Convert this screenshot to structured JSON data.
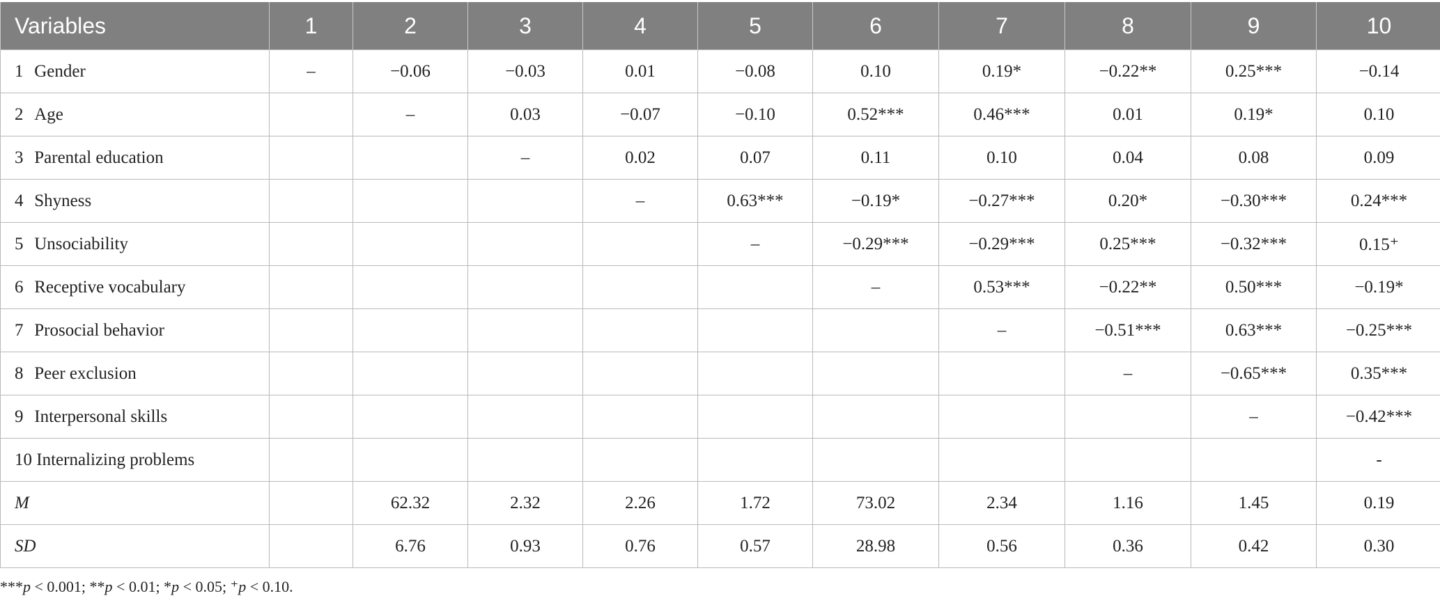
{
  "table": {
    "headers": [
      "Variables",
      "1",
      "2",
      "3",
      "4",
      "5",
      "6",
      "7",
      "8",
      "9",
      "10"
    ],
    "rows": [
      {
        "num": "1",
        "label": "Gender",
        "italic": false,
        "cells": [
          "–",
          "−0.06",
          "−0.03",
          "0.01",
          "−0.08",
          "0.10",
          "0.19*",
          "−0.22**",
          "0.25***",
          "−0.14"
        ]
      },
      {
        "num": "2",
        "label": "Age",
        "italic": false,
        "cells": [
          "",
          "–",
          "0.03",
          "−0.07",
          "−0.10",
          "0.52***",
          "0.46***",
          "0.01",
          "0.19*",
          "0.10"
        ]
      },
      {
        "num": "3",
        "label": "Parental education",
        "italic": false,
        "cells": [
          "",
          "",
          "–",
          "0.02",
          "0.07",
          "0.11",
          "0.10",
          "0.04",
          "0.08",
          "0.09"
        ]
      },
      {
        "num": "4",
        "label": "Shyness",
        "italic": false,
        "cells": [
          "",
          "",
          "",
          "–",
          "0.63***",
          "−0.19*",
          "−0.27***",
          "0.20*",
          "−0.30***",
          "0.24***"
        ]
      },
      {
        "num": "5",
        "label": "Unsociability",
        "italic": false,
        "cells": [
          "",
          "",
          "",
          "",
          "–",
          "−0.29***",
          "−0.29***",
          "0.25***",
          "−0.32***",
          "0.15⁺"
        ]
      },
      {
        "num": "6",
        "label": "Receptive vocabulary",
        "italic": false,
        "cells": [
          "",
          "",
          "",
          "",
          "",
          "–",
          "0.53***",
          "−0.22**",
          "0.50***",
          "−0.19*"
        ]
      },
      {
        "num": "7",
        "label": "Prosocial behavior",
        "italic": false,
        "cells": [
          "",
          "",
          "",
          "",
          "",
          "",
          "–",
          "−0.51***",
          "0.63***",
          "−0.25***"
        ]
      },
      {
        "num": "8",
        "label": "Peer exclusion",
        "italic": false,
        "cells": [
          "",
          "",
          "",
          "",
          "",
          "",
          "",
          "–",
          "−0.65***",
          "0.35***"
        ]
      },
      {
        "num": "9",
        "label": "Interpersonal skills",
        "italic": false,
        "cells": [
          "",
          "",
          "",
          "",
          "",
          "",
          "",
          "",
          "–",
          "−0.42***"
        ]
      },
      {
        "num": "10",
        "label": "Internalizing problems",
        "italic": false,
        "cells": [
          "",
          "",
          "",
          "",
          "",
          "",
          "",
          "",
          "",
          "-"
        ]
      },
      {
        "num": "",
        "label": "M",
        "italic": true,
        "cells": [
          "",
          "62.32",
          "2.32",
          "2.26",
          "1.72",
          "73.02",
          "2.34",
          "1.16",
          "1.45",
          "0.19"
        ]
      },
      {
        "num": "",
        "label": "SD",
        "italic": true,
        "cells": [
          "",
          "6.76",
          "0.93",
          "0.76",
          "0.57",
          "28.98",
          "0.56",
          "0.36",
          "0.42",
          "0.30"
        ]
      }
    ]
  },
  "note": {
    "parts": [
      {
        "text": "***",
        "italic": false
      },
      {
        "text": "p",
        "italic": true
      },
      {
        "text": " < 0.001; **",
        "italic": false
      },
      {
        "text": "p",
        "italic": true
      },
      {
        "text": " < 0.01; *",
        "italic": false
      },
      {
        "text": "p",
        "italic": true
      },
      {
        "text": " < 0.05; ⁺",
        "italic": false
      },
      {
        "text": "p",
        "italic": true
      },
      {
        "text": " < 0.10.",
        "italic": false
      }
    ]
  }
}
